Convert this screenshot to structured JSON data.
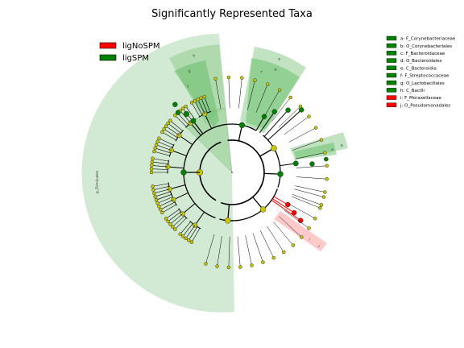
{
  "chart_data": {
    "type": "cladogram",
    "title": "Significantly Represented Taxa",
    "legend": [
      {
        "name": "ligNoSPM",
        "color": "#ff0000"
      },
      {
        "name": "ligSPM",
        "color": "#008000"
      }
    ],
    "clade_key": [
      {
        "text": "a: F_Corynebacteriaceae",
        "color": "#008000"
      },
      {
        "text": "b: O_Corynebacteriales",
        "color": "#008000"
      },
      {
        "text": "c: F_Bacteroidaceae",
        "color": "#008000"
      },
      {
        "text": "d: O_Bacteroidales",
        "color": "#008000"
      },
      {
        "text": "e: C_Bacteroidia",
        "color": "#008000"
      },
      {
        "text": "f: F_Streptococcaceae",
        "color": "#008000"
      },
      {
        "text": "g: O_Lactobacillales",
        "color": "#008000"
      },
      {
        "text": "h: C_Bacilli",
        "color": "#008000"
      },
      {
        "text": "i: F_Moraxellaceae",
        "color": "#ff0000"
      },
      {
        "text": "j: O_Pseudomonadales",
        "color": "#ff0000"
      }
    ],
    "phylum_label": "p_Firmicutes",
    "clade_letters": [
      "a",
      "b",
      "c",
      "d",
      "e",
      "f",
      "g",
      "h",
      "i",
      "j"
    ]
  }
}
